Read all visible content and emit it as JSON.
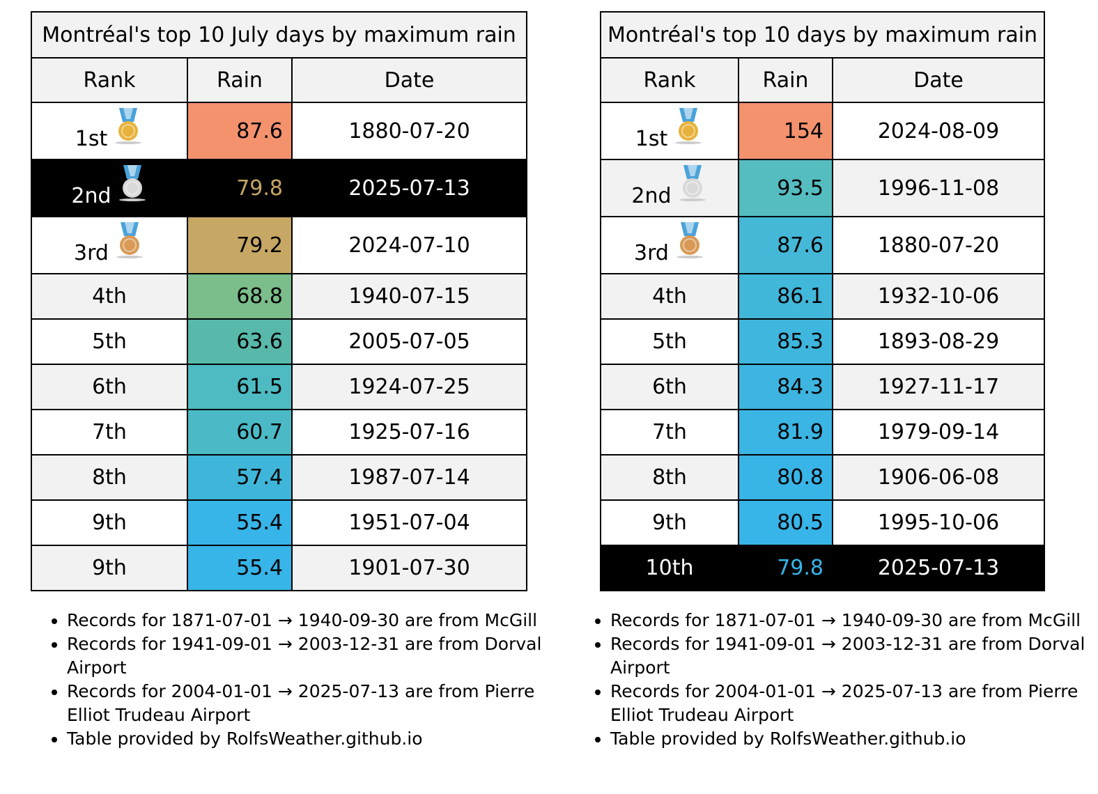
{
  "left_table": {
    "title": "Montréal's top 10 July days by maximum rain",
    "headers": {
      "rank": "Rank",
      "rain": "Rain",
      "date": "Date"
    },
    "rows": [
      {
        "rank": "1st",
        "medal": "gold-medal-icon",
        "rain": "87.6",
        "date": "1880-07-20",
        "rain_color": "#f4926e",
        "highlight": false
      },
      {
        "rank": "2nd",
        "medal": "silver-medal-icon",
        "rain": "79.8",
        "date": "2025-07-13",
        "rain_color": "#000000",
        "rain_text_color": "#c6a764",
        "highlight": true
      },
      {
        "rank": "3rd",
        "medal": "bronze-medal-icon",
        "rain": "79.2",
        "date": "2024-07-10",
        "rain_color": "#c6a764",
        "highlight": false
      },
      {
        "rank": "4th",
        "medal": "",
        "rain": "68.8",
        "date": "1940-07-15",
        "rain_color": "#7bbd8b",
        "highlight": false
      },
      {
        "rank": "5th",
        "medal": "",
        "rain": "63.6",
        "date": "2005-07-05",
        "rain_color": "#58b9aa",
        "highlight": false
      },
      {
        "rank": "6th",
        "medal": "",
        "rain": "61.5",
        "date": "1924-07-25",
        "rain_color": "#4ebac2",
        "highlight": false
      },
      {
        "rank": "7th",
        "medal": "",
        "rain": "60.7",
        "date": "1925-07-16",
        "rain_color": "#4bbac6",
        "highlight": false
      },
      {
        "rank": "8th",
        "medal": "",
        "rain": "57.4",
        "date": "1987-07-14",
        "rain_color": "#3fb6d9",
        "highlight": false
      },
      {
        "rank": "9th",
        "medal": "",
        "rain": "55.4",
        "date": "1951-07-04",
        "rain_color": "#37b4e8",
        "highlight": false
      },
      {
        "rank": "9th",
        "medal": "",
        "rain": "55.4",
        "date": "1901-07-30",
        "rain_color": "#37b4e8",
        "highlight": false
      }
    ],
    "notes": [
      "Records for 1871-07-01 → 1940-09-30 are from McGill",
      "Records for 1941-09-01 → 2003-12-31 are from Dorval Airport",
      "Records for 2004-01-01 → 2025-07-13 are from Pierre Elliot Trudeau Airport",
      "Table provided by RolfsWeather.github.io"
    ]
  },
  "right_table": {
    "title": "Montréal's top 10 days by maximum rain",
    "headers": {
      "rank": "Rank",
      "rain": "Rain",
      "date": "Date"
    },
    "rows": [
      {
        "rank": "1st",
        "medal": "gold-medal-icon",
        "rain": "154",
        "date": "2024-08-09",
        "rain_color": "#f4926e",
        "highlight": false
      },
      {
        "rank": "2nd",
        "medal": "silver-medal-icon",
        "rain": "93.5",
        "date": "1996-11-08",
        "rain_color": "#55bcc0",
        "highlight": false
      },
      {
        "rank": "3rd",
        "medal": "bronze-medal-icon",
        "rain": "87.6",
        "date": "1880-07-20",
        "rain_color": "#44b8d6",
        "highlight": false
      },
      {
        "rank": "4th",
        "medal": "",
        "rain": "86.1",
        "date": "1932-10-06",
        "rain_color": "#41b7da",
        "highlight": false
      },
      {
        "rank": "5th",
        "medal": "",
        "rain": "85.3",
        "date": "1893-08-29",
        "rain_color": "#3fb6dd",
        "highlight": false
      },
      {
        "rank": "6th",
        "medal": "",
        "rain": "84.3",
        "date": "1927-11-17",
        "rain_color": "#3db5e0",
        "highlight": false
      },
      {
        "rank": "7th",
        "medal": "",
        "rain": "81.9",
        "date": "1979-09-14",
        "rain_color": "#3ab5e4",
        "highlight": false
      },
      {
        "rank": "8th",
        "medal": "",
        "rain": "80.8",
        "date": "1906-06-08",
        "rain_color": "#38b4e7",
        "highlight": false
      },
      {
        "rank": "9th",
        "medal": "",
        "rain": "80.5",
        "date": "1995-10-06",
        "rain_color": "#37b4e8",
        "highlight": false
      },
      {
        "rank": "10th",
        "medal": "",
        "rain": "79.8",
        "date": "2025-07-13",
        "rain_color": "#000000",
        "rain_text_color": "#37b4e8",
        "highlight": true
      }
    ],
    "notes": [
      "Records for 1871-07-01 → 1940-09-30 are from McGill",
      "Records for 1941-09-01 → 2003-12-31 are from Dorval Airport",
      "Records for 2004-01-01 → 2025-07-13 are from Pierre Elliot Trudeau Airport",
      "Table provided by RolfsWeather.github.io"
    ]
  },
  "colors": {
    "header_bg": "#f2f2f2",
    "highlight_bg": "#000000",
    "highlight_text": "#ffffff",
    "gold": "#e8b33c",
    "silver": "#d9d9d9",
    "bronze": "#d89a56",
    "ribbon": "#4aa3d9"
  }
}
